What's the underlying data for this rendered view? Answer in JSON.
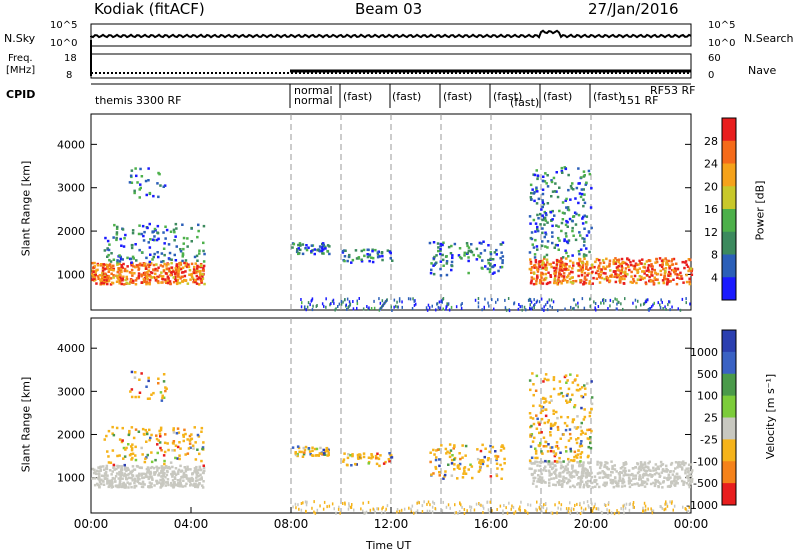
{
  "header": {
    "station": "Kodiak (fitACF)",
    "beam": "Beam 03",
    "date": "27/Jan/2016"
  },
  "noise_panel": {
    "left_label": "N.Sky",
    "right_label": "N.Search",
    "left_ticks": [
      "10^5",
      "10^0"
    ],
    "right_ticks": [
      "10^5",
      "10^0"
    ]
  },
  "freq_panel": {
    "left_label_1": "Freq.",
    "left_label_2": "[MHz]",
    "right_label": "Nave",
    "left_ticks": [
      "18",
      "8"
    ],
    "right_ticks": [
      "60",
      "0"
    ]
  },
  "cpid_panel": {
    "label": "CPID",
    "segments": [
      "themis 3300 RF",
      "normal",
      "normal",
      "(fast)",
      "(fast)",
      "(fast)",
      "(fast)",
      "(fast)",
      "(fast)",
      "(fast)",
      "151 RF",
      "RF53 RF"
    ]
  },
  "chart_data": [
    {
      "type": "heatmap",
      "title": "",
      "ylabel": "Slant Range [km]",
      "yticks": [
        "1000",
        "2000",
        "3000",
        "4000"
      ],
      "ylim": [
        180,
        4700
      ],
      "colorbar_label": "Power [dB]",
      "colorbar_ticks": [
        "4",
        "8",
        "12",
        "16",
        "20",
        "24",
        "28"
      ],
      "colors": [
        "#1a1aff",
        "#2b5fb8",
        "#3c8a5e",
        "#4db04a",
        "#c8c82a",
        "#f5a21a",
        "#f56b1a",
        "#e81e1e"
      ]
    },
    {
      "type": "heatmap",
      "title": "",
      "ylabel": "Slant Range [km]",
      "yticks": [
        "1000",
        "2000",
        "3000",
        "4000"
      ],
      "ylim": [
        180,
        4700
      ],
      "colorbar_label": "Velocity [m s⁻¹]",
      "colorbar_ticks": [
        "1000",
        "500",
        "100",
        "25",
        "-25",
        "-100",
        "-500",
        "-1000"
      ],
      "colors": [
        "#2b3fb0",
        "#3a62c4",
        "#4a9a4a",
        "#7ccc3a",
        "#c8c8c0",
        "#f5b31a",
        "#f5821a",
        "#e81e1e"
      ]
    }
  ],
  "xaxis": {
    "label": "Time UT",
    "ticks": [
      "00:00",
      "04:00",
      "08:00",
      "12:00",
      "16:00",
      "20:00",
      "00:00"
    ],
    "dashed_hours": [
      8,
      10,
      12,
      14,
      16,
      18,
      20
    ]
  }
}
